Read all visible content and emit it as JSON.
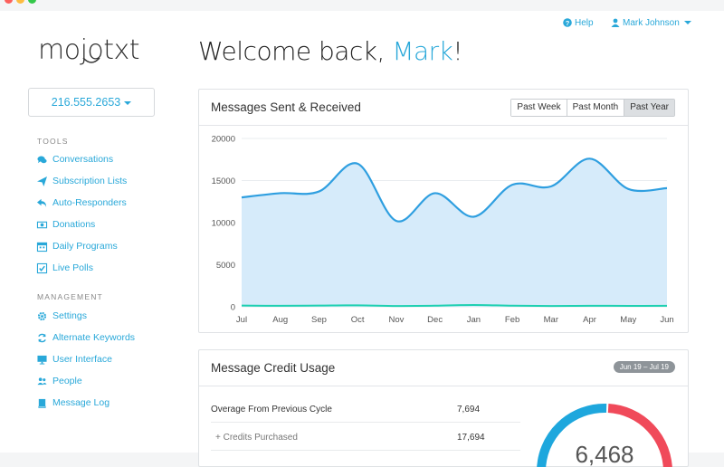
{
  "window": {
    "controls": [
      "close",
      "minimize",
      "maximize"
    ]
  },
  "brand": {
    "logo_text": "mojotxt",
    "accent": "#29a8d9"
  },
  "topnav": {
    "help_label": "Help",
    "user_label": "Mark Johnson"
  },
  "phone": {
    "number": "216.555.2653"
  },
  "welcome": {
    "prefix": "Welcome back, ",
    "name": "Mark",
    "suffix": "!"
  },
  "sidebar": {
    "tools_title": "TOOLS",
    "tools": [
      {
        "label": "Conversations",
        "icon": "comments-icon"
      },
      {
        "label": "Subscription Lists",
        "icon": "paper-plane-icon"
      },
      {
        "label": "Auto-Responders",
        "icon": "reply-icon"
      },
      {
        "label": "Donations",
        "icon": "money-icon"
      },
      {
        "label": "Daily Programs",
        "icon": "calendar-icon"
      },
      {
        "label": "Live Polls",
        "icon": "check-square-icon"
      }
    ],
    "management_title": "MANAGEMENT",
    "management": [
      {
        "label": "Settings",
        "icon": "gear-icon"
      },
      {
        "label": "Alternate Keywords",
        "icon": "refresh-icon"
      },
      {
        "label": "User Interface",
        "icon": "desktop-icon"
      },
      {
        "label": "People",
        "icon": "users-icon"
      },
      {
        "label": "Message Log",
        "icon": "book-icon"
      }
    ]
  },
  "messages_panel": {
    "title": "Messages Sent & Received",
    "range_buttons": [
      "Past Week",
      "Past Month",
      "Past Year"
    ],
    "active_range": "Past Year"
  },
  "chart_data": {
    "type": "area",
    "title": "Messages Sent & Received",
    "categories": [
      "Jul",
      "Aug",
      "Sep",
      "Oct",
      "Nov",
      "Dec",
      "Jan",
      "Feb",
      "Mar",
      "Apr",
      "May",
      "Jun"
    ],
    "ylim": [
      0,
      20000
    ],
    "yticks": [
      0,
      5000,
      10000,
      15000,
      20000
    ],
    "grid": true,
    "legend": "none",
    "series": [
      {
        "values": [
          13000,
          13500,
          13700,
          17000,
          10200,
          13500,
          10700,
          14500,
          14300,
          17600,
          14000,
          14100
        ],
        "color": "#2f9fe0",
        "fill": "#d6ebfa"
      },
      {
        "values": [
          150,
          120,
          150,
          180,
          100,
          130,
          220,
          130,
          100,
          120,
          110,
          120
        ],
        "color": "#1fd0b1"
      }
    ]
  },
  "credit_panel": {
    "title": "Message Credit Usage",
    "date_badge": "Jun 19 – Jul 19",
    "rows": [
      {
        "label": "Overage From Previous Cycle",
        "value": "7,694"
      },
      {
        "label": "+ Credits Purchased",
        "value": "17,694"
      }
    ],
    "gauge_text": "6,468",
    "gauge_used_fraction": 0.42,
    "gauge_colors": {
      "used": "#f04a5a",
      "remaining": "#1ea7dd"
    }
  }
}
